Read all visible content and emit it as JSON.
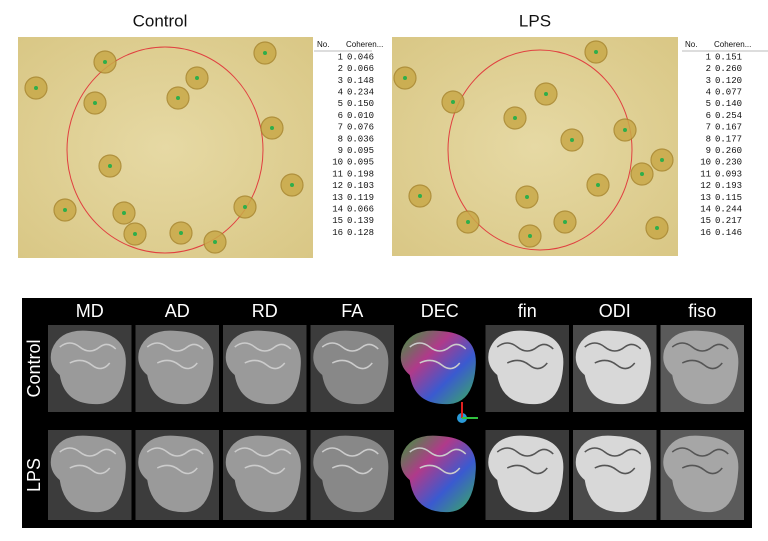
{
  "panels": [
    {
      "title": "Control",
      "table": {
        "header": [
          "No.",
          "Coheren..."
        ],
        "rows": [
          [
            1,
            "0.046"
          ],
          [
            2,
            "0.066"
          ],
          [
            3,
            "0.148"
          ],
          [
            4,
            "0.234"
          ],
          [
            5,
            "0.150"
          ],
          [
            6,
            "0.010"
          ],
          [
            7,
            "0.076"
          ],
          [
            8,
            "0.036"
          ],
          [
            9,
            "0.095"
          ],
          [
            10,
            "0.095"
          ],
          [
            11,
            "0.198"
          ],
          [
            12,
            "0.103"
          ],
          [
            13,
            "0.119"
          ],
          [
            14,
            "0.066"
          ],
          [
            15,
            "0.139"
          ],
          [
            16,
            "0.128"
          ]
        ]
      }
    },
    {
      "title": "LPS",
      "table": {
        "header": [
          "No.",
          "Coheren..."
        ],
        "rows": [
          [
            1,
            "0.151"
          ],
          [
            2,
            "0.260"
          ],
          [
            3,
            "0.120"
          ],
          [
            4,
            "0.077"
          ],
          [
            5,
            "0.140"
          ],
          [
            6,
            "0.254"
          ],
          [
            7,
            "0.167"
          ],
          [
            8,
            "0.177"
          ],
          [
            9,
            "0.260"
          ],
          [
            10,
            "0.230"
          ],
          [
            11,
            "0.093"
          ],
          [
            12,
            "0.193"
          ],
          [
            13,
            "0.115"
          ],
          [
            14,
            "0.244"
          ],
          [
            15,
            "0.217"
          ],
          [
            16,
            "0.146"
          ]
        ]
      }
    }
  ],
  "mri": {
    "columns": [
      "MD",
      "AD",
      "RD",
      "FA",
      "DEC",
      "fin",
      "ODI",
      "fiso"
    ],
    "rows": [
      "Control",
      "LPS"
    ]
  }
}
